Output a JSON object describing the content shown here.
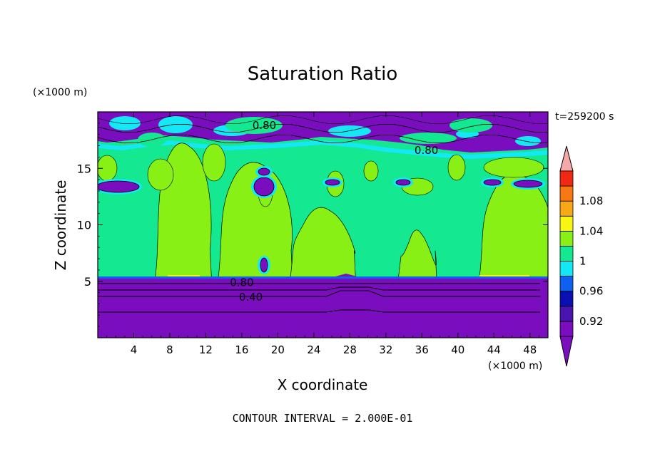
{
  "chart_data": {
    "type": "heatmap",
    "title": "Saturation Ratio",
    "xlabel": "X coordinate",
    "ylabel": "Z coordinate",
    "x_unit": "(×1000 m)",
    "y_unit": "(×1000 m)",
    "time_label": "t=259200 s",
    "footer": "CONTOUR INTERVAL = 2.000E-01",
    "xlim": [
      0,
      50
    ],
    "ylim": [
      0,
      20
    ],
    "x_ticks": [
      4,
      8,
      12,
      16,
      20,
      24,
      28,
      32,
      36,
      40,
      44,
      48
    ],
    "y_ticks": [
      5,
      10,
      15
    ],
    "contour_labels": [
      {
        "text": "0.80",
        "x": 18.5,
        "y": 18.8
      },
      {
        "text": "0.80",
        "x": 36.5,
        "y": 16.6
      },
      {
        "text": "0.80",
        "x": 16.0,
        "y": 4.9
      },
      {
        "text": "0.40",
        "x": 17.0,
        "y": 3.6
      }
    ],
    "colorbar": {
      "levels": [
        0.92,
        0.94,
        0.96,
        0.98,
        1.0,
        1.02,
        1.04,
        1.06,
        1.08,
        1.1
      ],
      "labels": [
        "0.92",
        "0.96",
        "1",
        "1.04",
        "1.08"
      ],
      "label_values": [
        0.92,
        0.96,
        1.0,
        1.04,
        1.08
      ],
      "colors": [
        "#7a0dbd",
        "#4a14b0",
        "#0a10b4",
        "#1060f0",
        "#14e8f4",
        "#14e890",
        "#88f014",
        "#f8f414",
        "#f8a814",
        "#f87814",
        "#f02814"
      ],
      "over_color": "#f5a8a8",
      "under_color": "#7a0dbd"
    },
    "regions": {
      "upper_band": {
        "y_range": [
          16.3,
          20
        ],
        "level": "<0.92 to 0.98"
      },
      "mid_layer": {
        "y_range": [
          5.2,
          16.3
        ],
        "level": "0.98 to 1.02"
      },
      "lower_layer": {
        "y_range": [
          0,
          5.2
        ],
        "level": "<0.92"
      },
      "plumes": [
        {
          "x": [
            7,
            12
          ],
          "top": 17.2
        },
        {
          "x": [
            14,
            21
          ],
          "top": 15.5
        },
        {
          "x": [
            22,
            28
          ],
          "top": 11.5
        },
        {
          "x": [
            34,
            37
          ],
          "top": 9.5
        },
        {
          "x": [
            43,
            50
          ],
          "top": 14.5
        }
      ]
    }
  }
}
